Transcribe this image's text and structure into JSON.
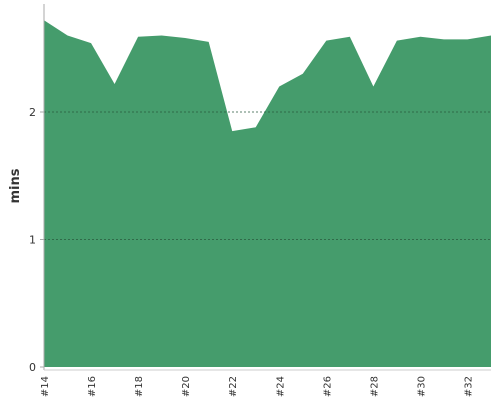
{
  "chart_data": {
    "type": "area",
    "y_label": "mins",
    "categories": [
      "#14",
      null,
      "#16",
      null,
      "#18",
      null,
      "#20",
      null,
      "#22",
      null,
      "#24",
      null,
      "#26",
      null,
      "#28",
      null,
      "#30",
      null,
      "#32",
      null
    ],
    "values": [
      2.72,
      2.6,
      2.54,
      2.22,
      2.59,
      2.6,
      2.58,
      2.55,
      1.85,
      1.88,
      2.2,
      2.3,
      2.56,
      2.59,
      2.2,
      2.56,
      2.59,
      2.57,
      2.57,
      2.6
    ],
    "color": "#459c6c",
    "ylim": [
      0,
      2.85
    ],
    "yticks": [
      0,
      1,
      2
    ],
    "grid": true
  }
}
